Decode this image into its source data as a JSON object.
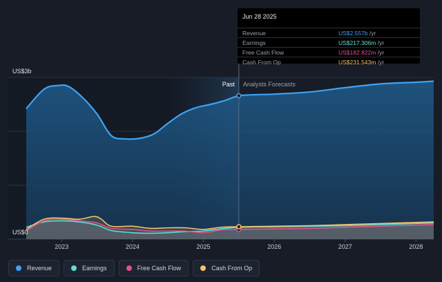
{
  "tooltip": {
    "date": "Jun 28 2025",
    "rows": [
      {
        "label": "Revenue",
        "value": "US$2.557b",
        "unit": " /yr",
        "color": "#3fa2f4"
      },
      {
        "label": "Earnings",
        "value": "US$217.306m",
        "unit": " /yr",
        "color": "#5ce0d2"
      },
      {
        "label": "Free Cash Flow",
        "value": "US$182.822m",
        "unit": " /yr",
        "color": "#e0528c"
      },
      {
        "label": "Cash From Op",
        "value": "US$231.543m",
        "unit": " /yr",
        "color": "#f2c46b"
      }
    ]
  },
  "legend": [
    {
      "label": "Revenue",
      "color": "#3fa2f4"
    },
    {
      "label": "Earnings",
      "color": "#5ce0d2"
    },
    {
      "label": "Free Cash Flow",
      "color": "#e0528c"
    },
    {
      "label": "Cash From Op",
      "color": "#f2c46b"
    }
  ],
  "chart_data": {
    "type": "area",
    "y_top_label": "US$3b",
    "y_bottom_label": "US$0",
    "ylim": [
      0,
      3.0
    ],
    "xlim": [
      2022.5,
      2028.25
    ],
    "x_ticks": [
      {
        "value": 2023,
        "label": "2023"
      },
      {
        "value": 2024,
        "label": "2024"
      },
      {
        "value": 2025,
        "label": "2025"
      },
      {
        "value": 2026,
        "label": "2026"
      },
      {
        "value": 2027,
        "label": "2027"
      },
      {
        "value": 2028,
        "label": "2028"
      }
    ],
    "past_label": "Past",
    "forecast_label": "Analysts Forecasts",
    "divider_x": 2025.5,
    "highlight_start": 2024.5,
    "series": [
      {
        "name": "Revenue",
        "color": "#3fa2f4",
        "x": [
          2022.5,
          2022.75,
          2022.95,
          2023.1,
          2023.3,
          2023.5,
          2023.7,
          2023.9,
          2024.1,
          2024.3,
          2024.5,
          2024.7,
          2024.9,
          2025.1,
          2025.3,
          2025.5,
          2025.75,
          2026.0,
          2026.5,
          2027.0,
          2027.5,
          2028.0,
          2028.25
        ],
        "y": [
          2.42,
          2.78,
          2.85,
          2.83,
          2.62,
          2.32,
          1.92,
          1.86,
          1.87,
          1.95,
          2.15,
          2.33,
          2.44,
          2.5,
          2.57,
          2.66,
          2.68,
          2.69,
          2.73,
          2.81,
          2.88,
          2.91,
          2.93
        ]
      },
      {
        "name": "Earnings",
        "color": "#5ce0d2",
        "x": [
          2022.5,
          2022.75,
          2023.0,
          2023.25,
          2023.5,
          2023.7,
          2024.0,
          2024.25,
          2024.5,
          2024.75,
          2025.0,
          2025.25,
          2025.5,
          2026.0,
          2026.5,
          2027.0,
          2027.5,
          2028.0,
          2028.25
        ],
        "y": [
          0.22,
          0.32,
          0.34,
          0.32,
          0.26,
          0.16,
          0.12,
          0.11,
          0.12,
          0.14,
          0.15,
          0.19,
          0.22,
          0.23,
          0.24,
          0.25,
          0.27,
          0.29,
          0.3
        ]
      },
      {
        "name": "Free Cash Flow",
        "color": "#e0528c",
        "x": [
          2022.5,
          2022.75,
          2023.0,
          2023.25,
          2023.5,
          2023.7,
          2024.0,
          2024.25,
          2024.5,
          2024.75,
          2025.0,
          2025.25,
          2025.5,
          2026.0,
          2026.5,
          2027.0,
          2027.5,
          2028.0,
          2028.25
        ],
        "y": [
          0.15,
          0.34,
          0.37,
          0.34,
          0.3,
          0.2,
          0.18,
          0.15,
          0.15,
          0.15,
          0.12,
          0.17,
          0.18,
          0.19,
          0.2,
          0.22,
          0.24,
          0.26,
          0.27
        ]
      },
      {
        "name": "Cash From Op",
        "color": "#f2c46b",
        "x": [
          2022.5,
          2022.75,
          2023.0,
          2023.25,
          2023.45,
          2023.55,
          2023.7,
          2024.0,
          2024.25,
          2024.5,
          2024.75,
          2025.0,
          2025.25,
          2025.5,
          2026.0,
          2026.5,
          2027.0,
          2027.5,
          2028.0,
          2028.25
        ],
        "y": [
          0.18,
          0.37,
          0.39,
          0.37,
          0.42,
          0.38,
          0.24,
          0.24,
          0.2,
          0.21,
          0.21,
          0.18,
          0.22,
          0.23,
          0.24,
          0.25,
          0.27,
          0.29,
          0.31,
          0.32
        ]
      }
    ]
  }
}
